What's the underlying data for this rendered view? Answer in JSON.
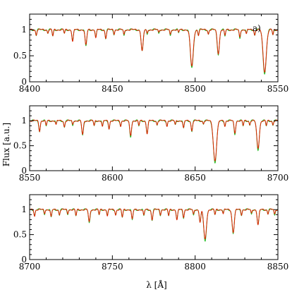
{
  "chart_data": {
    "type": "line",
    "ylabel": "Flux [a.u.]",
    "xlabel": "λ [Å]",
    "panel_tag": "a)",
    "colors": {
      "observed": "#22bb22",
      "model": "#dd2200"
    },
    "grid": false,
    "panels": [
      {
        "xlim": [
          8400,
          8550
        ],
        "ylim": [
          0,
          1.3
        ],
        "xticks": [
          8400,
          8450,
          8500,
          8550
        ],
        "yticks": [
          0,
          0.5,
          1
        ],
        "lines": [
          {
            "x": 8404,
            "d": 0.1
          },
          {
            "x": 8411,
            "d": 0.06
          },
          {
            "x": 8414,
            "d": 0.12
          },
          {
            "x": 8421,
            "d": 0.07
          },
          {
            "x": 8426,
            "d": 0.22
          },
          {
            "x": 8434,
            "d": 0.3
          },
          {
            "x": 8440,
            "d": 0.15
          },
          {
            "x": 8446,
            "d": 0.16
          },
          {
            "x": 8451,
            "d": 0.08
          },
          {
            "x": 8457,
            "d": 0.1
          },
          {
            "x": 8468,
            "d": 0.4
          },
          {
            "x": 8471,
            "d": 0.08
          },
          {
            "x": 8478,
            "d": 0.06
          },
          {
            "x": 8485,
            "d": 0.1
          },
          {
            "x": 8490,
            "d": 0.06
          },
          {
            "x": 8498,
            "d": 0.7
          },
          {
            "x": 8502,
            "d": 0.1
          },
          {
            "x": 8508,
            "d": 0.08
          },
          {
            "x": 8514,
            "d": 0.45
          },
          {
            "x": 8518,
            "d": 0.12
          },
          {
            "x": 8527,
            "d": 0.15
          },
          {
            "x": 8531,
            "d": 0.08
          },
          {
            "x": 8536,
            "d": 0.1
          },
          {
            "x": 8542,
            "d": 0.8
          },
          {
            "x": 8547,
            "d": 0.1
          }
        ]
      },
      {
        "xlim": [
          8550,
          8700
        ],
        "ylim": [
          0,
          1.3
        ],
        "xticks": [
          8550,
          8600,
          8650,
          8700
        ],
        "yticks": [
          0,
          0.5,
          1
        ],
        "lines": [
          {
            "x": 8556,
            "d": 0.2
          },
          {
            "x": 8560,
            "d": 0.1
          },
          {
            "x": 8566,
            "d": 0.08
          },
          {
            "x": 8571,
            "d": 0.12
          },
          {
            "x": 8576,
            "d": 0.08
          },
          {
            "x": 8582,
            "d": 0.28
          },
          {
            "x": 8589,
            "d": 0.1
          },
          {
            "x": 8594,
            "d": 0.12
          },
          {
            "x": 8598,
            "d": 0.15
          },
          {
            "x": 8605,
            "d": 0.1
          },
          {
            "x": 8611,
            "d": 0.3
          },
          {
            "x": 8616,
            "d": 0.1
          },
          {
            "x": 8621,
            "d": 0.25
          },
          {
            "x": 8627,
            "d": 0.08
          },
          {
            "x": 8633,
            "d": 0.1
          },
          {
            "x": 8638,
            "d": 0.08
          },
          {
            "x": 8643,
            "d": 0.15
          },
          {
            "x": 8648,
            "d": 0.2
          },
          {
            "x": 8655,
            "d": 0.06
          },
          {
            "x": 8662,
            "d": 0.8
          },
          {
            "x": 8668,
            "d": 0.1
          },
          {
            "x": 8674,
            "d": 0.25
          },
          {
            "x": 8679,
            "d": 0.1
          },
          {
            "x": 8683,
            "d": 0.08
          },
          {
            "x": 8688,
            "d": 0.55
          },
          {
            "x": 8693,
            "d": 0.1
          },
          {
            "x": 8697,
            "d": 0.08
          }
        ]
      },
      {
        "xlim": [
          8700,
          8850
        ],
        "ylim": [
          0,
          1.3
        ],
        "xticks": [
          8700,
          8750,
          8800,
          8850
        ],
        "yticks": [
          0,
          0.5,
          1
        ],
        "lines": [
          {
            "x": 8703,
            "d": 0.12
          },
          {
            "x": 8709,
            "d": 0.08
          },
          {
            "x": 8713,
            "d": 0.15
          },
          {
            "x": 8718,
            "d": 0.1
          },
          {
            "x": 8723,
            "d": 0.08
          },
          {
            "x": 8728,
            "d": 0.12
          },
          {
            "x": 8736,
            "d": 0.25
          },
          {
            "x": 8742,
            "d": 0.1
          },
          {
            "x": 8747,
            "d": 0.12
          },
          {
            "x": 8752,
            "d": 0.1
          },
          {
            "x": 8756,
            "d": 0.15
          },
          {
            "x": 8762,
            "d": 0.2
          },
          {
            "x": 8769,
            "d": 0.12
          },
          {
            "x": 8774,
            "d": 0.2
          },
          {
            "x": 8779,
            "d": 0.1
          },
          {
            "x": 8784,
            "d": 0.12
          },
          {
            "x": 8789,
            "d": 0.2
          },
          {
            "x": 8793,
            "d": 0.15
          },
          {
            "x": 8799,
            "d": 0.1
          },
          {
            "x": 8803,
            "d": 0.25
          },
          {
            "x": 8806,
            "d": 0.6
          },
          {
            "x": 8812,
            "d": 0.1
          },
          {
            "x": 8817,
            "d": 0.08
          },
          {
            "x": 8823,
            "d": 0.45
          },
          {
            "x": 8828,
            "d": 0.1
          },
          {
            "x": 8834,
            "d": 0.08
          },
          {
            "x": 8838,
            "d": 0.3
          },
          {
            "x": 8844,
            "d": 0.08
          },
          {
            "x": 8848,
            "d": 0.1
          }
        ]
      }
    ]
  }
}
